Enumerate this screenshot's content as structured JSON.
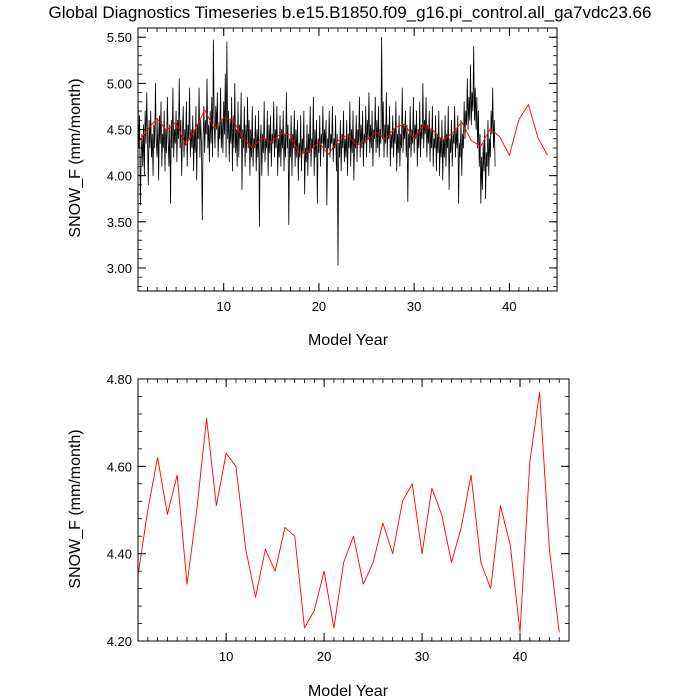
{
  "chart_data": [
    {
      "type": "line",
      "title": "Global Diagnostics Timeseries b.e15.B1850.f09_g16.pi_control.all_ga7vdc23.66",
      "xlabel": "Model Year",
      "ylabel": "SNOW_F (mm/month)",
      "xlim": [
        1,
        45
      ],
      "ylim": [
        2.75,
        5.6
      ],
      "xticks": [
        10,
        20,
        30,
        40
      ],
      "xtick_labels": [
        "10",
        "20",
        "30",
        "40"
      ],
      "yticks": [
        3.0,
        3.5,
        4.0,
        4.5,
        5.0,
        5.5
      ],
      "ytick_labels": [
        "3.00",
        "3.50",
        "4.00",
        "4.50",
        "5.00",
        "5.50"
      ],
      "grid": false,
      "series": [
        {
          "color": "#000000",
          "x_start": 1,
          "x_step": 0.0833333333,
          "values": [
            4.9,
            4.3,
            4.65,
            3.68,
            4.2,
            4.45,
            4.1,
            4.55,
            4.0,
            4.7,
            4.35,
            4.9,
            4.4,
            3.9,
            4.6,
            4.3,
            4.7,
            4.2,
            4.45,
            4.0,
            4.55,
            4.3,
            5.0,
            4.4,
            4.2,
            4.6,
            3.95,
            4.65,
            4.35,
            4.8,
            4.1,
            4.45,
            4.3,
            4.7,
            4.05,
            4.5,
            4.25,
            4.85,
            4.4,
            4.1,
            4.55,
            3.7,
            4.6,
            4.3,
            4.95,
            4.2,
            4.5,
            4.35,
            4.7,
            4.15,
            4.6,
            4.4,
            5.05,
            4.3,
            4.6,
            4.0,
            4.45,
            4.75,
            4.2,
            4.5,
            4.35,
            4.8,
            4.1,
            4.55,
            4.4,
            4.95,
            4.2,
            4.5,
            4.3,
            4.65,
            4.05,
            4.5,
            4.25,
            4.75,
            3.95,
            4.55,
            4.4,
            4.95,
            4.2,
            4.6,
            4.35,
            3.52,
            4.4,
            4.75,
            4.25,
            4.6,
            4.45,
            5.05,
            4.3,
            4.55,
            4.15,
            4.7,
            4.35,
            4.85,
            4.2,
            5.47,
            4.6,
            4.3,
            4.75,
            4.5,
            4.9,
            4.2,
            4.55,
            4.4,
            4.95,
            4.3,
            4.6,
            4.25,
            4.8,
            4.45,
            5.1,
            4.2,
            5.45,
            4.4,
            4.7,
            4.15,
            4.6,
            4.35,
            4.85,
            4.05,
            4.65,
            4.3,
            5.0,
            4.25,
            4.5,
            4.1,
            4.8,
            4.2,
            4.55,
            4.4,
            4.9,
            3.85,
            4.5,
            4.3,
            4.75,
            4.1,
            4.55,
            4.25,
            4.85,
            4.3,
            4.6,
            4.0,
            4.5,
            4.2,
            4.75,
            4.1,
            4.4,
            4.3,
            4.65,
            4.05,
            4.5,
            4.2,
            4.7,
            3.45,
            4.35,
            4.55,
            4.0,
            4.45,
            4.25,
            4.8,
            4.15,
            4.4,
            4.3,
            4.7,
            4.0,
            4.55,
            4.25,
            4.65,
            4.1,
            4.45,
            4.35,
            4.8,
            4.2,
            4.5,
            4.3,
            4.75,
            4.0,
            4.4,
            4.2,
            4.65,
            4.1,
            4.5,
            4.3,
            4.7,
            4.05,
            4.45,
            4.2,
            4.9,
            4.3,
            4.55,
            3.47,
            4.4,
            4.2,
            4.65,
            4.0,
            4.45,
            4.3,
            4.7,
            4.1,
            4.5,
            4.2,
            4.6,
            3.95,
            4.35,
            4.2,
            4.65,
            4.05,
            4.4,
            4.25,
            4.7,
            3.8,
            4.3,
            4.15,
            4.55,
            4.0,
            4.45,
            4.25,
            4.75,
            4.1,
            4.4,
            4.3,
            4.85,
            4.0,
            4.5,
            4.2,
            4.6,
            3.7,
            4.4,
            4.25,
            4.65,
            4.1,
            4.45,
            4.35,
            4.75,
            4.2,
            4.5,
            4.3,
            4.6,
            3.68,
            4.4,
            4.3,
            4.7,
            4.2,
            4.45,
            4.35,
            4.75,
            4.15,
            4.4,
            4.3,
            4.65,
            4.05,
            4.45,
            3.03,
            4.35,
            4.2,
            4.6,
            4.05,
            4.45,
            4.3,
            4.7,
            4.15,
            4.4,
            4.2,
            4.6,
            4.0,
            4.45,
            4.3,
            4.8,
            4.1,
            4.5,
            4.25,
            4.7,
            3.95,
            4.4,
            4.3,
            4.65,
            4.15,
            4.5,
            4.35,
            4.85,
            4.2,
            4.55,
            4.3,
            4.7,
            4.1,
            4.45,
            4.35,
            4.75,
            4.2,
            4.6,
            4.4,
            4.9,
            4.25,
            4.55,
            4.3,
            4.7,
            4.1,
            4.5,
            4.4,
            4.85,
            4.25,
            4.6,
            4.3,
            4.75,
            4.2,
            4.5,
            4.35,
            5.5,
            4.4,
            4.8,
            4.2,
            4.55,
            4.35,
            4.9,
            4.2,
            4.55,
            4.4,
            4.75,
            4.1,
            4.45,
            4.3,
            4.65,
            4.2,
            4.5,
            4.35,
            4.8,
            4.05,
            4.45,
            4.25,
            4.65,
            4.1,
            4.45,
            4.3,
            4.95,
            4.25,
            4.55,
            4.4,
            4.7,
            4.2,
            4.55,
            3.72,
            4.45,
            4.3,
            4.75,
            4.2,
            4.5,
            4.35,
            4.85,
            4.25,
            4.55,
            4.4,
            4.7,
            4.1,
            4.5,
            4.3,
            4.8,
            4.2,
            4.55,
            4.4,
            5.0,
            4.3,
            4.6,
            4.45,
            4.85,
            4.2,
            4.55,
            4.35,
            4.7,
            4.15,
            4.5,
            4.3,
            4.75,
            4.1,
            4.4,
            4.3,
            4.65,
            4.05,
            4.45,
            4.25,
            4.7,
            4.0,
            4.4,
            4.2,
            4.6,
            3.95,
            4.4,
            4.2,
            4.65,
            4.1,
            4.45,
            4.3,
            4.75,
            3.85,
            4.4,
            4.25,
            4.6,
            4.1,
            4.45,
            4.35,
            4.75,
            4.2,
            4.5,
            4.3,
            4.65,
            3.7,
            4.35,
            4.2,
            4.6,
            4.0,
            4.45,
            4.3,
            4.8,
            4.4,
            4.7,
            4.55,
            5.05,
            4.5,
            4.85,
            4.6,
            5.2,
            4.55,
            4.9,
            4.7,
            5.4,
            4.6,
            4.95,
            4.5,
            4.85,
            4.3,
            4.7,
            4.1,
            4.45,
            3.7,
            4.2,
            3.85,
            4.35,
            4.05,
            4.5,
            3.75,
            4.25,
            4.1,
            4.6,
            4.0,
            4.4,
            4.2,
            4.7,
            4.45,
            4.95,
            4.3,
            4.6,
            4.1
          ]
        },
        {
          "color": "#ff0000",
          "x_start": 1,
          "x_step": 1,
          "values": [
            4.35,
            4.5,
            4.62,
            4.49,
            4.58,
            4.33,
            4.5,
            4.71,
            4.51,
            4.63,
            4.6,
            4.41,
            4.3,
            4.41,
            4.36,
            4.46,
            4.44,
            4.23,
            4.27,
            4.36,
            4.23,
            4.38,
            4.44,
            4.33,
            4.38,
            4.47,
            4.4,
            4.52,
            4.56,
            4.4,
            4.55,
            4.49,
            4.38,
            4.46,
            4.58,
            4.38,
            4.32,
            4.51,
            4.42,
            4.22,
            4.61,
            4.77,
            4.41,
            4.22
          ]
        }
      ]
    },
    {
      "type": "line",
      "xlabel": "Model Year",
      "ylabel": "SNOW_F (mm/month)",
      "xlim": [
        1,
        45
      ],
      "ylim": [
        4.2,
        4.8
      ],
      "xticks": [
        10,
        20,
        30,
        40
      ],
      "xtick_labels": [
        "10",
        "20",
        "30",
        "40"
      ],
      "yticks": [
        4.2,
        4.4,
        4.6,
        4.8
      ],
      "ytick_labels": [
        "4.20",
        "4.40",
        "4.60",
        "4.80"
      ],
      "grid": false,
      "series": [
        {
          "color": "#ff0000",
          "x_start": 1,
          "x_step": 1,
          "values": [
            4.35,
            4.5,
            4.62,
            4.49,
            4.58,
            4.33,
            4.5,
            4.71,
            4.51,
            4.63,
            4.6,
            4.41,
            4.3,
            4.41,
            4.36,
            4.46,
            4.44,
            4.23,
            4.27,
            4.36,
            4.23,
            4.38,
            4.44,
            4.33,
            4.38,
            4.47,
            4.4,
            4.52,
            4.56,
            4.4,
            4.55,
            4.49,
            4.38,
            4.46,
            4.58,
            4.38,
            4.32,
            4.51,
            4.42,
            4.22,
            4.61,
            4.77,
            4.41,
            4.22
          ]
        }
      ]
    }
  ]
}
